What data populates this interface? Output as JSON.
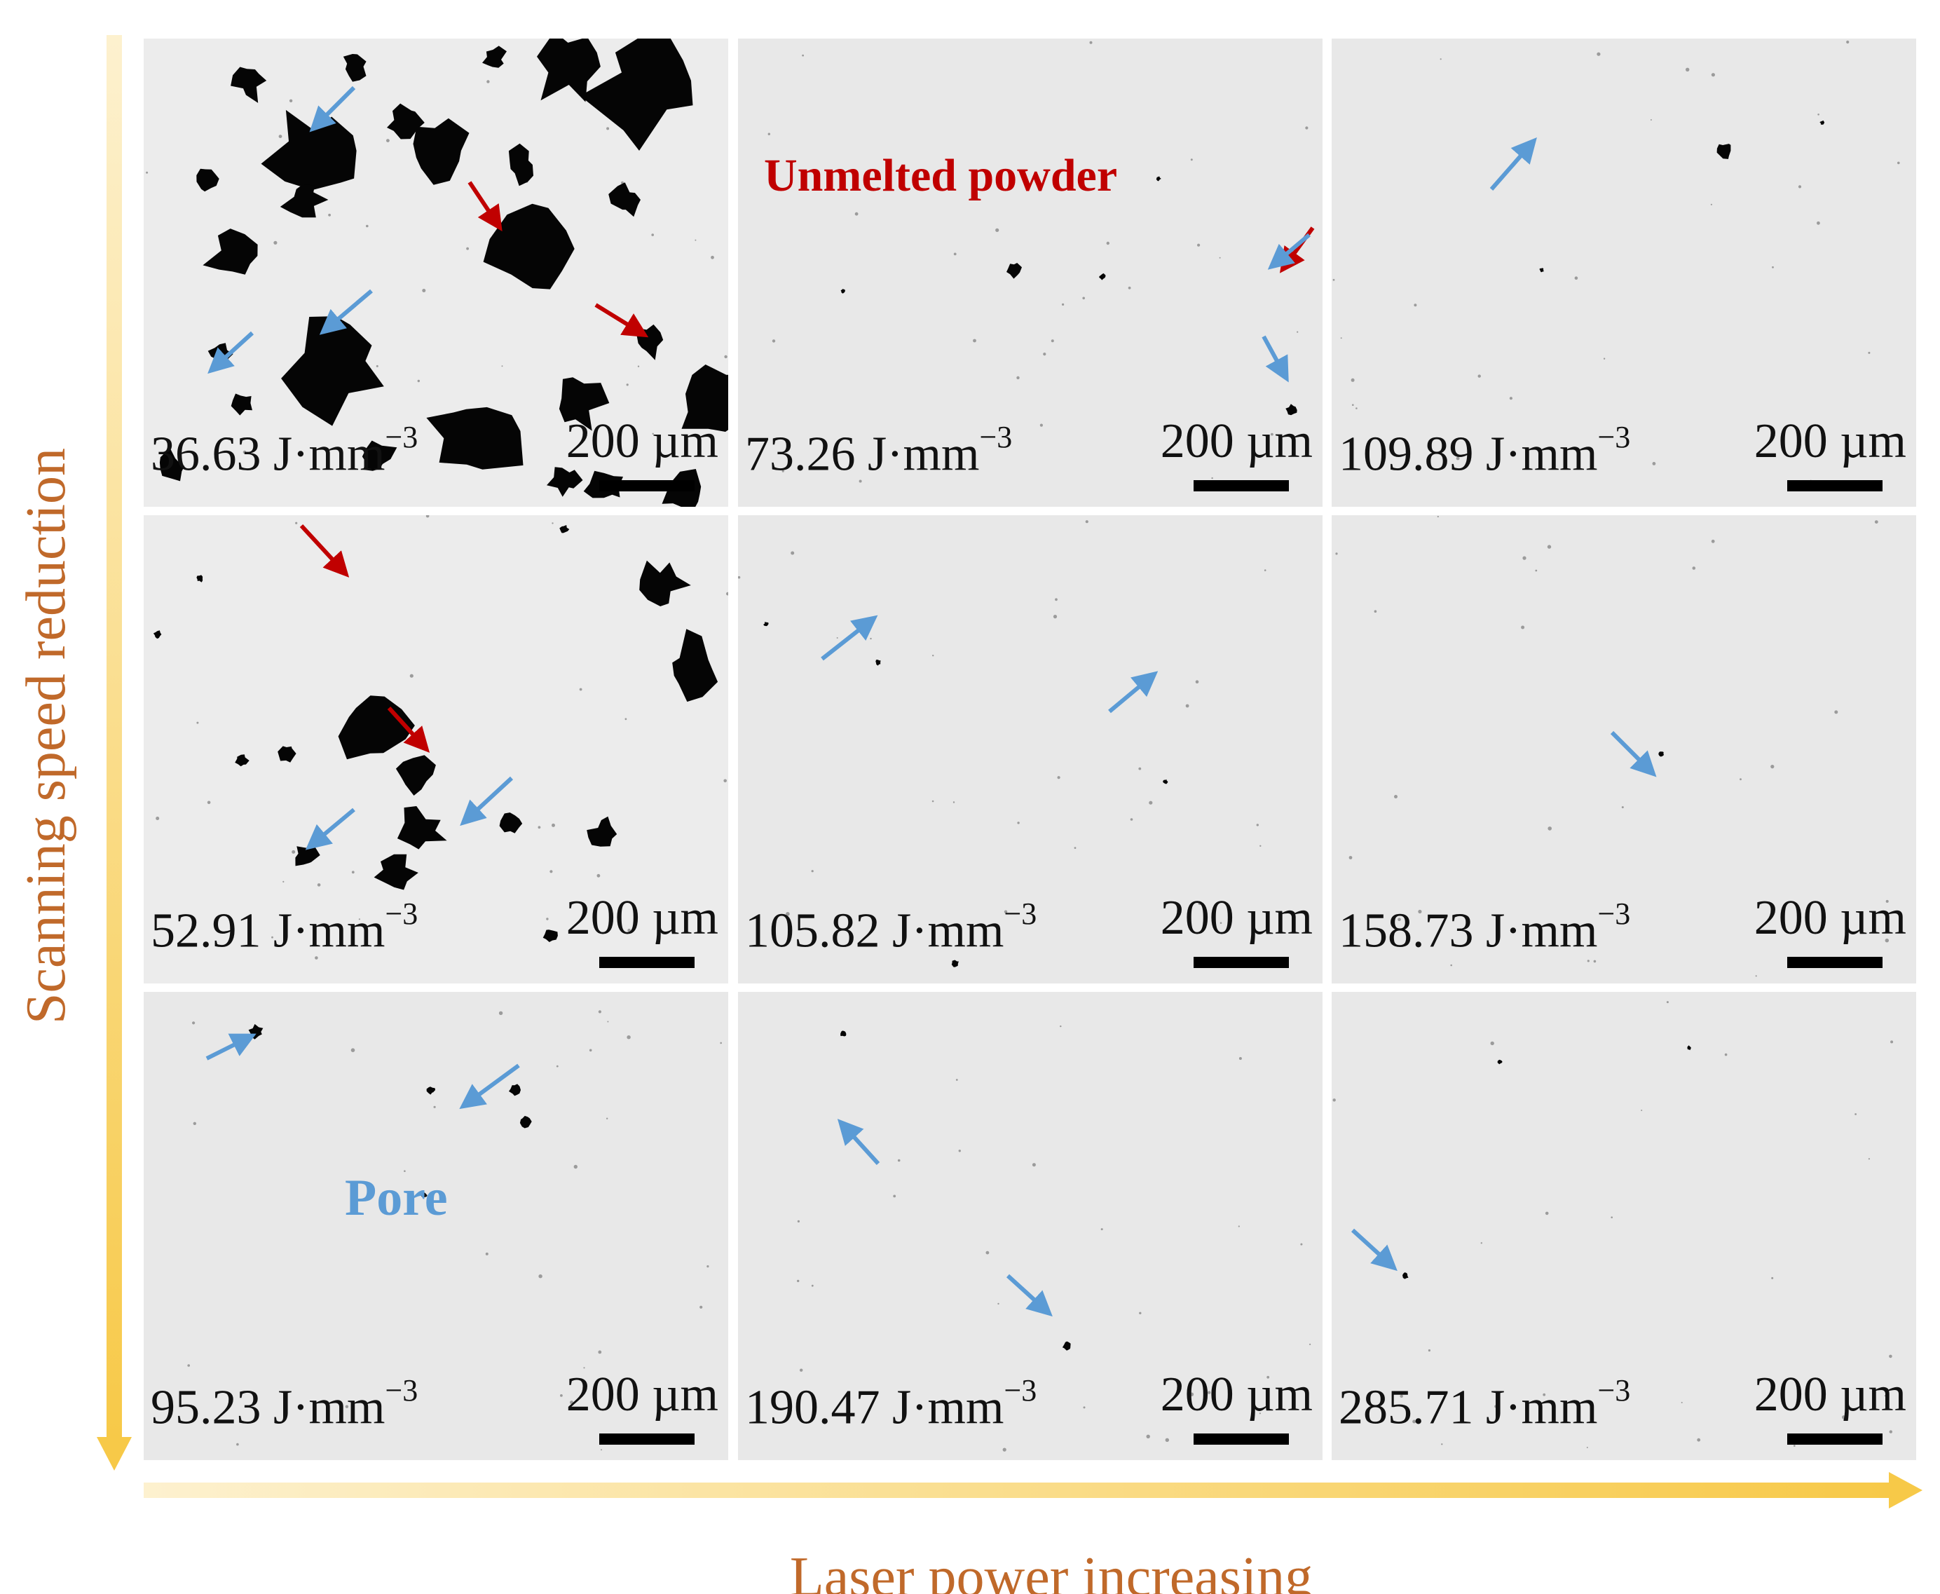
{
  "figure": {
    "x_axis_label": "Laser power increasing",
    "y_axis_label": "Scanning speed reduction",
    "scale_bar_label": "200 µm",
    "energy_unit": "J·mm",
    "energy_unit_exponent": "−3",
    "annotations": {
      "unmelted_powder": "Unmelted powder",
      "pore": "Pore"
    },
    "colors": {
      "axis_text": "#c0692a",
      "axis_arrow_start": "#fdf1cf",
      "axis_arrow_end": "#f7c948",
      "unmelted_powder": "#c00000",
      "pore": "#5b9bd5",
      "panel_background": "#e9e9e9"
    },
    "panels": [
      {
        "energy": "36.63"
      },
      {
        "energy": "73.26"
      },
      {
        "energy": "109.89"
      },
      {
        "energy": "52.91"
      },
      {
        "energy": "105.82"
      },
      {
        "energy": "158.73"
      },
      {
        "energy": "95.23"
      },
      {
        "energy": "190.47"
      },
      {
        "energy": "285.71"
      }
    ]
  }
}
